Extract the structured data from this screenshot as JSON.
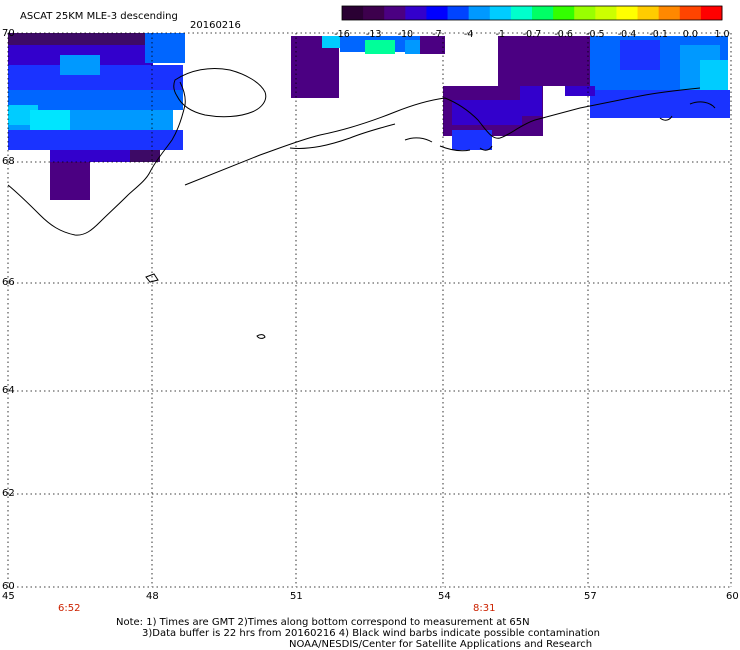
{
  "title": "ASCAT 25KM MLE-3 descending",
  "date": "20160216",
  "colorbar": {
    "labels": [
      "-16",
      "-13",
      "-10",
      "-7",
      "-4",
      "-1",
      "-0.7",
      "-0.6",
      "-0.5",
      "-0.4",
      "-0.1",
      "0.0",
      "1.0"
    ],
    "colors": [
      "#2a0033",
      "#3d004d",
      "#4b0082",
      "#3300cc",
      "#0000ff",
      "#0044ff",
      "#0099ff",
      "#00ccff",
      "#00ffcc",
      "#00ff66",
      "#33ff00",
      "#99ff00",
      "#ccff00",
      "#ffff00",
      "#ffcc00",
      "#ff8800",
      "#ff4400",
      "#ff0000"
    ]
  },
  "lat_labels": [
    "70",
    "68",
    "66",
    "64",
    "62",
    "60"
  ],
  "lon_labels": [
    "45",
    "48",
    "51",
    "54",
    "57",
    "60"
  ],
  "time_labels": [
    "6:52",
    "8:31"
  ],
  "notes": [
    "Note: 1) Times are GMT 2)Times along bottom correspond to measurement at 65N",
    "3)Data buffer is 22 hrs from 20160216 4) Black wind barbs indicate possible contamination",
    "NOAA/NESDIS/Center for Satellite Applications and Research"
  ],
  "colors": {
    "deep": "#3d0a66",
    "violet": "#4b0082",
    "indigo": "#3300cc",
    "blue": "#1a33ff",
    "azure": "#0066ff",
    "sky": "#0099ff",
    "cyan": "#00ccff",
    "aqua": "#00e5ff",
    "mint": "#00ff99"
  }
}
